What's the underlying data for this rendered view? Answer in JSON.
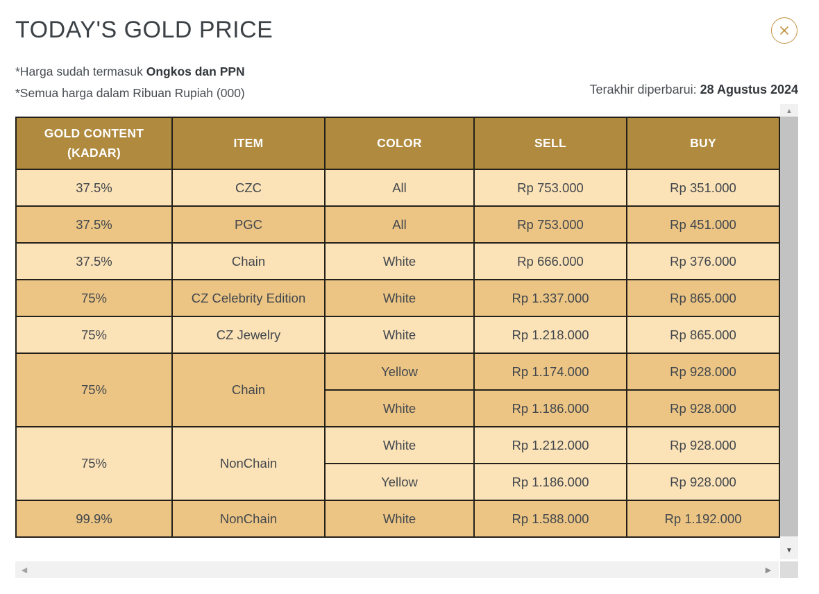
{
  "header": {
    "title": "TODAY'S GOLD PRICE"
  },
  "notes": {
    "line1_prefix": "*Harga sudah termasuk ",
    "line1_bold": "Ongkos dan PPN",
    "line2": "*Semua harga dalam Ribuan Rupiah (000)"
  },
  "updated": {
    "label": "Terakhir diperbarui: ",
    "date": "28 Agustus 2024"
  },
  "table": {
    "columns": [
      "GOLD CONTENT (KADAR)",
      "ITEM",
      "COLOR",
      "SELL",
      "BUY"
    ],
    "rows": [
      {
        "kadar": "37.5%",
        "item": "CZC",
        "shade": "light",
        "variants": [
          {
            "color": "All",
            "sell": "Rp 753.000",
            "buy": "Rp 351.000"
          }
        ]
      },
      {
        "kadar": "37.5%",
        "item": "PGC",
        "shade": "dark",
        "variants": [
          {
            "color": "All",
            "sell": "Rp 753.000",
            "buy": "Rp 451.000"
          }
        ]
      },
      {
        "kadar": "37.5%",
        "item": "Chain",
        "shade": "light",
        "variants": [
          {
            "color": "White",
            "sell": "Rp 666.000",
            "buy": "Rp 376.000"
          }
        ]
      },
      {
        "kadar": "75%",
        "item": "CZ Celebrity Edition",
        "shade": "dark",
        "variants": [
          {
            "color": "White",
            "sell": "Rp 1.337.000",
            "buy": "Rp 865.000"
          }
        ]
      },
      {
        "kadar": "75%",
        "item": "CZ Jewelry",
        "shade": "light",
        "variants": [
          {
            "color": "White",
            "sell": "Rp 1.218.000",
            "buy": "Rp 865.000"
          }
        ]
      },
      {
        "kadar": "75%",
        "item": "Chain",
        "shade": "dark",
        "variants": [
          {
            "color": "Yellow",
            "sell": "Rp 1.174.000",
            "buy": "Rp 928.000"
          },
          {
            "color": "White",
            "sell": "Rp 1.186.000",
            "buy": "Rp 928.000"
          }
        ]
      },
      {
        "kadar": "75%",
        "item": "NonChain",
        "shade": "light",
        "variants": [
          {
            "color": "White",
            "sell": "Rp 1.212.000",
            "buy": "Rp 928.000"
          },
          {
            "color": "Yellow",
            "sell": "Rp 1.186.000",
            "buy": "Rp 928.000"
          }
        ]
      },
      {
        "kadar": "99.9%",
        "item": "NonChain",
        "shade": "dark",
        "variants": [
          {
            "color": "White",
            "sell": "Rp 1.588.000",
            "buy": "Rp 1.192.000"
          }
        ]
      }
    ]
  },
  "scrollbar": {
    "up_glyph": "▲",
    "down_glyph": "▼",
    "left_glyph": "◀",
    "right_glyph": "▶"
  },
  "colors": {
    "header_bg": "#b08a3e",
    "row_light": "#fbe2b7",
    "row_dark": "#ecc585",
    "table_border": "#23201a",
    "accent_gold": "#c2913e",
    "cell_text": "#42474c"
  }
}
